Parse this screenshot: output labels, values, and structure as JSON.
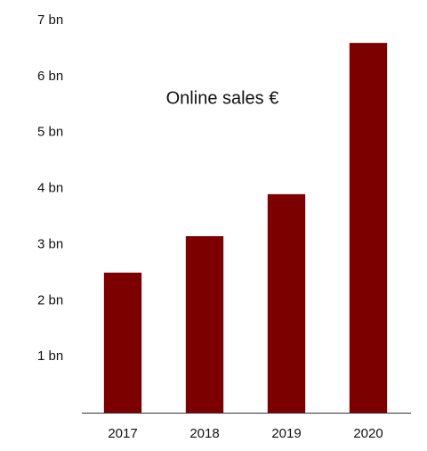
{
  "chart_data": {
    "type": "bar",
    "title": "Online sales €",
    "categories": [
      "2017",
      "2018",
      "2019",
      "2020"
    ],
    "values": [
      2.5,
      3.15,
      3.9,
      6.6
    ],
    "color": "#7d0000",
    "ylim": [
      0,
      7
    ],
    "yticks": [
      {
        "value": 1,
        "label": "1 bn"
      },
      {
        "value": 2,
        "label": "2 bn"
      },
      {
        "value": 3,
        "label": "3 bn"
      },
      {
        "value": 4,
        "label": "4 bn"
      },
      {
        "value": 5,
        "label": "5 bn"
      },
      {
        "value": 6,
        "label": "6 bn"
      },
      {
        "value": 7,
        "label": "7 bn"
      }
    ],
    "grid": false
  }
}
